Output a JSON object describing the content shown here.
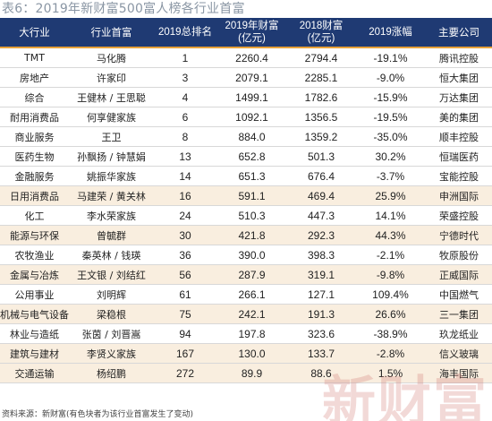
{
  "title": "表6：2019年新财富500富人榜各行业首富",
  "columns": [
    "大行业",
    "行业首富",
    "2019总排名",
    "2019年财富",
    "(亿元)",
    "2018财富",
    "(亿元)",
    "2019涨幅",
    "主要公司"
  ],
  "rows": [
    {
      "industry": "TMT",
      "richest": "马化腾",
      "rank": "1",
      "wealth2019": "2260.4",
      "wealth2018": "2794.4",
      "change": "-19.1%",
      "company": "腾讯控股"
    },
    {
      "industry": "房地产",
      "richest": "许家印",
      "rank": "3",
      "wealth2019": "2079.1",
      "wealth2018": "2285.1",
      "change": "-9.0%",
      "company": "恒大集团"
    },
    {
      "industry": "综合",
      "richest": "王健林 / 王思聪",
      "rank": "4",
      "wealth2019": "1499.1",
      "wealth2018": "1782.6",
      "change": "-15.9%",
      "company": "万达集团"
    },
    {
      "industry": "耐用消费品",
      "richest": "何享健家族",
      "rank": "6",
      "wealth2019": "1092.1",
      "wealth2018": "1356.5",
      "change": "-19.5%",
      "company": "美的集团"
    },
    {
      "industry": "商业服务",
      "richest": "王卫",
      "rank": "8",
      "wealth2019": "884.0",
      "wealth2018": "1359.2",
      "change": "-35.0%",
      "company": "顺丰控股"
    },
    {
      "industry": "医药生物",
      "richest": "孙飘扬 / 钟慧娟",
      "rank": "13",
      "wealth2019": "652.8",
      "wealth2018": "501.3",
      "change": "30.2%",
      "company": "恒瑞医药"
    },
    {
      "industry": "金融服务",
      "richest": "姚振华家族",
      "rank": "14",
      "wealth2019": "651.3",
      "wealth2018": "676.4",
      "change": "-3.7%",
      "company": "宝能控股"
    },
    {
      "industry": "日用消费品",
      "richest": "马建荣 / 黄关林",
      "rank": "16",
      "wealth2019": "591.1",
      "wealth2018": "469.4",
      "change": "25.9%",
      "company": "申洲国际"
    },
    {
      "industry": "化工",
      "richest": "李水荣家族",
      "rank": "24",
      "wealth2019": "510.3",
      "wealth2018": "447.3",
      "change": "14.1%",
      "company": "荣盛控股"
    },
    {
      "industry": "能源与环保",
      "richest": "曾毓群",
      "rank": "30",
      "wealth2019": "421.8",
      "wealth2018": "292.3",
      "change": "44.3%",
      "company": "宁德时代"
    },
    {
      "industry": "农牧渔业",
      "richest": "秦英林 / 钱瑛",
      "rank": "36",
      "wealth2019": "390.0",
      "wealth2018": "398.3",
      "change": "-2.1%",
      "company": "牧原股份"
    },
    {
      "industry": "金属与冶炼",
      "richest": "王文银 / 刘结红",
      "rank": "56",
      "wealth2019": "287.9",
      "wealth2018": "319.1",
      "change": "-9.8%",
      "company": "正威国际"
    },
    {
      "industry": "公用事业",
      "richest": "刘明辉",
      "rank": "61",
      "wealth2019": "266.1",
      "wealth2018": "127.1",
      "change": "109.4%",
      "company": "中国燃气"
    },
    {
      "industry": "机械与电气设备",
      "richest": "梁稳根",
      "rank": "75",
      "wealth2019": "242.1",
      "wealth2018": "191.3",
      "change": "26.6%",
      "company": "三一集团"
    },
    {
      "industry": "林业与造纸",
      "richest": "张茵 / 刘晋嵩",
      "rank": "94",
      "wealth2019": "197.8",
      "wealth2018": "323.6",
      "change": "-38.9%",
      "company": "玖龙纸业"
    },
    {
      "industry": "建筑与建材",
      "richest": "李贤义家族",
      "rank": "167",
      "wealth2019": "130.0",
      "wealth2018": "133.7",
      "change": "-2.8%",
      "company": "信义玻璃"
    },
    {
      "industry": "交通运输",
      "richest": "杨绍鹏",
      "rank": "272",
      "wealth2019": "89.9",
      "wealth2018": "88.6",
      "change": "1.5%",
      "company": "海丰国际"
    }
  ],
  "footer": "资料来源：新财富(有色块者为该行业首富发生了变动)",
  "watermark": "新财富",
  "colors": {
    "header_bg": "#1f3a73",
    "header_border": "#e8a23a",
    "changed_row_bg": "#f9eedf"
  },
  "changed_rows": [
    7,
    9,
    11,
    13,
    15,
    16
  ]
}
